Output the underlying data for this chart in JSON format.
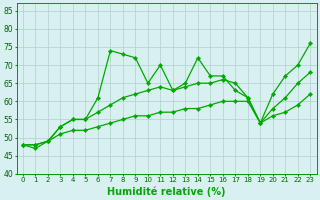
{
  "xlabel": "Humidité relative (%)",
  "background_color": "#d8f0f0",
  "grid_color": "#b0d0d0",
  "line_color": "#00aa00",
  "xlim_min": -0.5,
  "xlim_max": 23.5,
  "ylim": [
    40,
    87
  ],
  "yticks": [
    40,
    45,
    50,
    55,
    60,
    65,
    70,
    75,
    80,
    85
  ],
  "xticks": [
    0,
    1,
    2,
    3,
    4,
    5,
    6,
    7,
    8,
    9,
    10,
    11,
    12,
    13,
    14,
    15,
    16,
    17,
    18,
    19,
    20,
    21,
    22,
    23
  ],
  "series1": [
    48,
    47,
    49,
    53,
    55,
    55,
    61,
    74,
    73,
    72,
    65,
    70,
    63,
    65,
    72,
    67,
    67,
    63,
    61,
    54,
    62,
    67,
    70,
    76
  ],
  "series2": [
    48,
    48,
    49,
    53,
    55,
    55,
    57,
    59,
    61,
    62,
    63,
    64,
    63,
    64,
    65,
    65,
    66,
    65,
    61,
    54,
    58,
    61,
    65,
    68
  ],
  "series3": [
    48,
    48,
    49,
    51,
    52,
    52,
    53,
    54,
    55,
    56,
    56,
    57,
    57,
    58,
    58,
    59,
    60,
    60,
    60,
    54,
    56,
    57,
    59,
    62
  ]
}
